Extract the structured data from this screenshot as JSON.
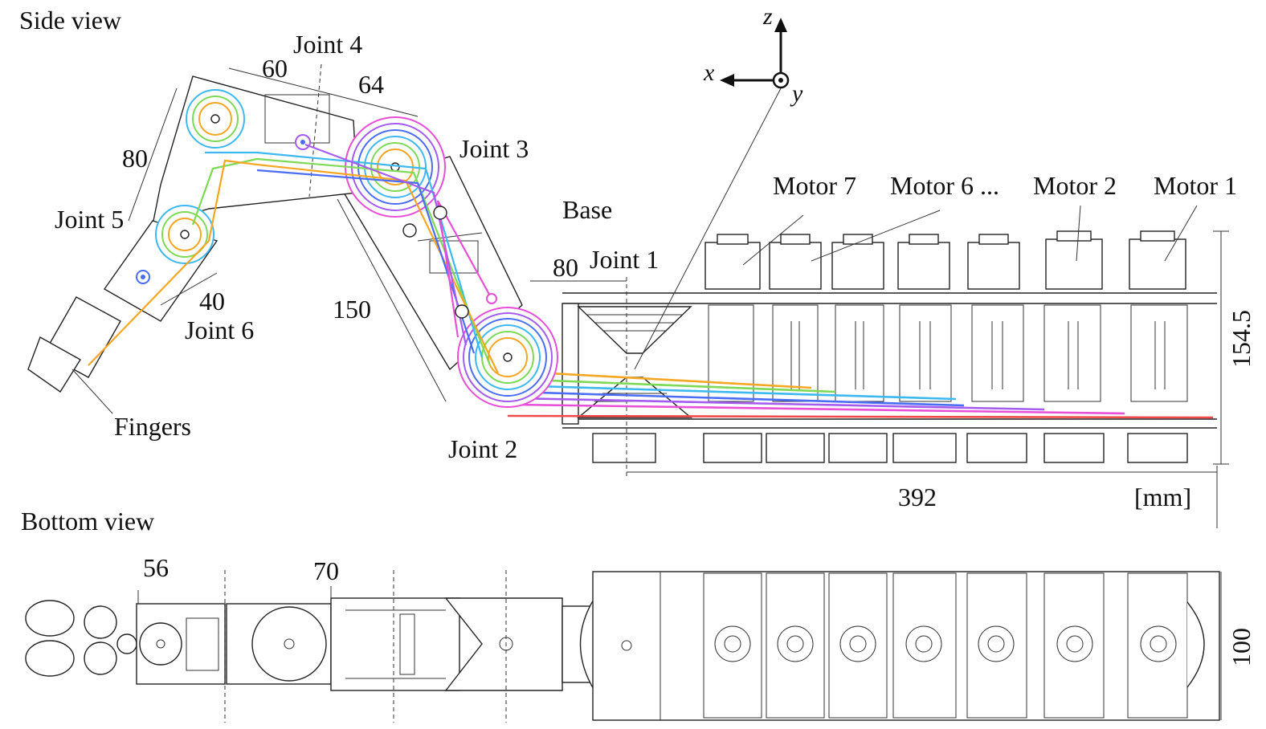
{
  "views": {
    "side": "Side view",
    "bottom": "Bottom view"
  },
  "axes": {
    "x": "x",
    "y": "y",
    "z": "z"
  },
  "joints": {
    "j1": "Joint 1",
    "j2": "Joint 2",
    "j3": "Joint 3",
    "j4": "Joint 4",
    "j5": "Joint 5",
    "j6": "Joint 6"
  },
  "parts": {
    "base": "Base",
    "fingers": "Fingers",
    "motor7": "Motor 7",
    "motor6": "Motor 6 ...",
    "motor2": "Motor 2",
    "motor1": "Motor 1"
  },
  "dimensions": {
    "d60": "60",
    "d64": "64",
    "d80a": "80",
    "d40": "40",
    "d150": "150",
    "d80b": "80",
    "d154": "154.5",
    "d392": "392",
    "unit": "[mm]",
    "d56": "56",
    "d70": "70",
    "d100": "100"
  },
  "wire_colors": [
    "#f5a623",
    "#7ed957",
    "#3db8f0",
    "#4a6cf7",
    "#a45cf0",
    "#e84fd6",
    "#f04a4a"
  ]
}
